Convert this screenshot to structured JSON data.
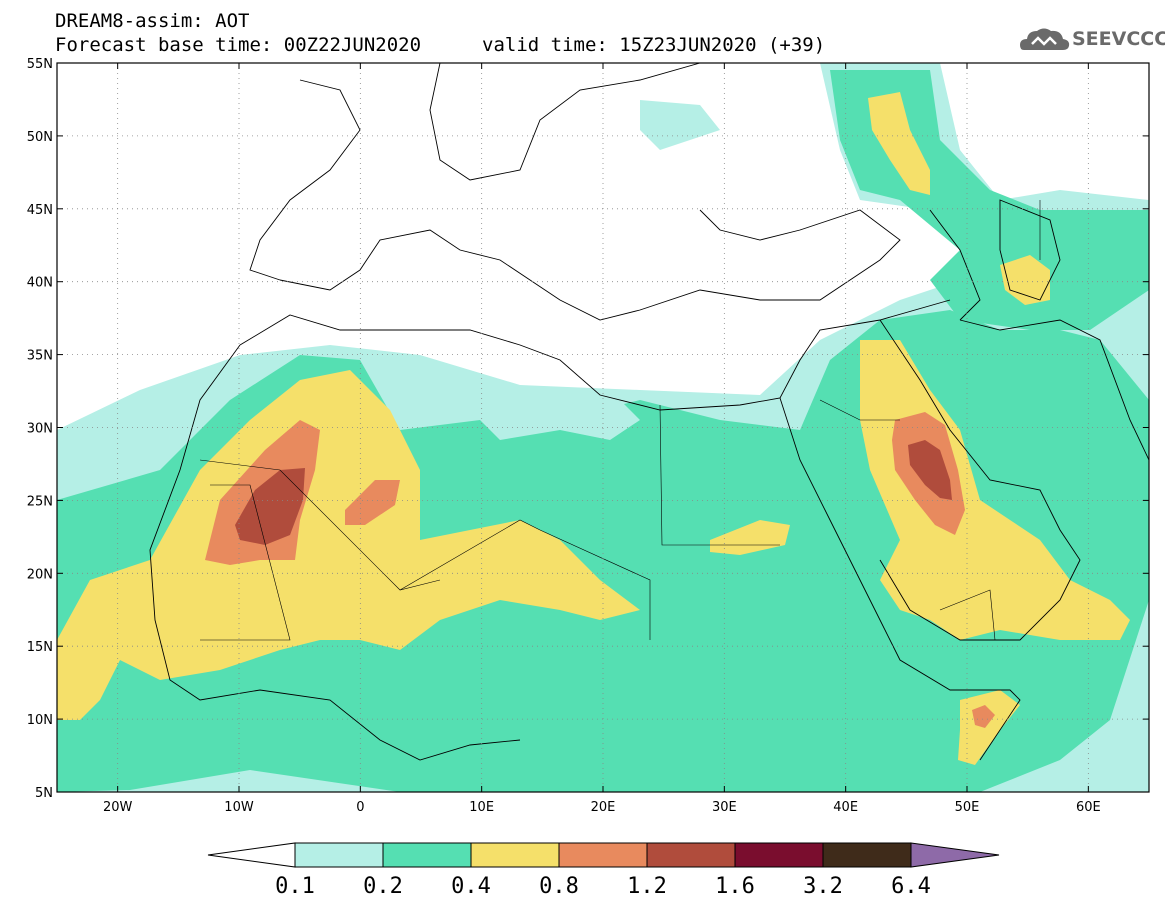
{
  "header": {
    "product": "DREAM8-assim: AOT",
    "base_time": "Forecast base time: 00Z22JUN2020",
    "valid_time": "valid time: 15Z23JUN2020 (+39)",
    "logo_text": "SEEVCCC"
  },
  "map": {
    "lon_range": [
      -25,
      65
    ],
    "lat_range": [
      5,
      55
    ],
    "lat_labels": [
      "55N",
      "50N",
      "45N",
      "40N",
      "35N",
      "30N",
      "25N",
      "20N",
      "15N",
      "10N",
      "5N"
    ],
    "lat_values": [
      55,
      50,
      45,
      40,
      35,
      30,
      25,
      20,
      15,
      10,
      5
    ],
    "lon_labels": [
      "20W",
      "10W",
      "0",
      "10E",
      "20E",
      "30E",
      "40E",
      "50E",
      "60E"
    ],
    "lon_values": [
      -20,
      -10,
      0,
      10,
      20,
      30,
      40,
      50,
      60
    ],
    "gridlines": "dotted",
    "field": "AOT"
  },
  "colorbar": {
    "levels": [
      "0.1",
      "0.2",
      "0.4",
      "0.8",
      "1.2",
      "1.6",
      "3.2",
      "6.4"
    ],
    "colors": [
      "#ffffff",
      "#b5efe6",
      "#55dfb2",
      "#f5e06a",
      "#e88a5e",
      "#b04c3c",
      "#7a0d2e",
      "#3f2b1a",
      "#8e6aa8"
    ]
  }
}
